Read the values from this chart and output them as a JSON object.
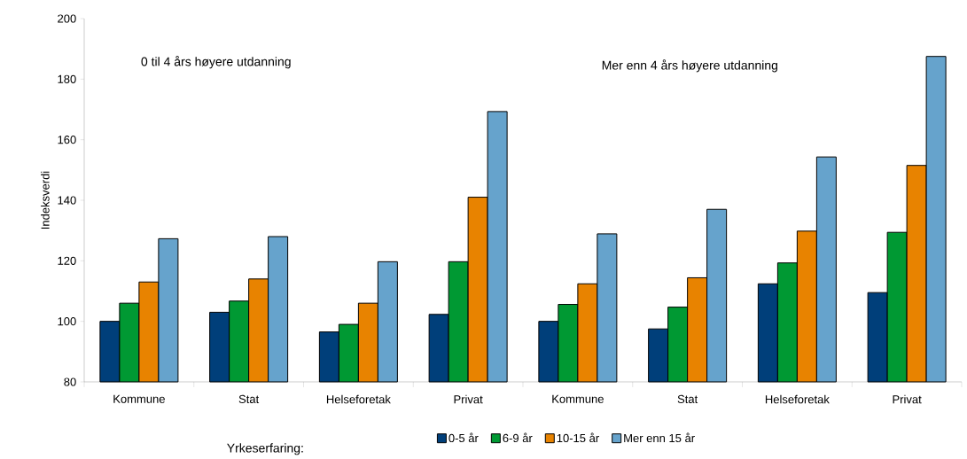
{
  "chart_data": {
    "type": "bar",
    "ylabel": "Indeksverdi",
    "legend_title": "Yrkeserfaring:",
    "categories": [
      "Kommune",
      "Stat",
      "Helseforetak",
      "Privat",
      "Kommune",
      "Stat",
      "Helseforetak",
      "Privat"
    ],
    "series": [
      {
        "name": "0-5 år",
        "color": "#003f7a",
        "values": [
          100,
          103,
          96.5,
          102.3,
          100,
          97.5,
          112.4,
          109.5
        ]
      },
      {
        "name": "6-9 år",
        "color": "#009933",
        "values": [
          106,
          106.7,
          99,
          119.7,
          105.6,
          104.7,
          119.3,
          129.4
        ]
      },
      {
        "name": "10-15 år",
        "color": "#e88300",
        "values": [
          113,
          114,
          106,
          141,
          112.4,
          114.4,
          129.8,
          151.5
        ]
      },
      {
        "name": "Mer enn 15 år",
        "color": "#66a3cc",
        "values": [
          127.3,
          128,
          119.7,
          169.3,
          128.9,
          137,
          154.3,
          187.5
        ]
      }
    ],
    "annotations": [
      "0 til 4 års høyere utdanning",
      "Mer enn 4 års høyere utdanning"
    ],
    "ylim": [
      80,
      200
    ],
    "yticks": [
      80,
      100,
      120,
      140,
      160,
      180,
      200
    ],
    "grid": false,
    "legend": "bottom"
  }
}
